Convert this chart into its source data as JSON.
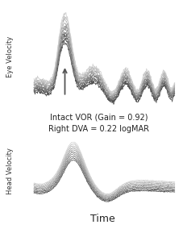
{
  "title_line1": "Intact VOR (Gain = 0.92)",
  "title_line2": "Right DVA = 0.22 logMAR",
  "xlabel": "Time",
  "ylabel_top": "Eye Velocity",
  "ylabel_bottom": "Head Velocity",
  "background_color": "#ffffff",
  "n_traces": 10,
  "arrow_color": "#555555",
  "text_fontsize": 7,
  "label_fontsize": 6
}
